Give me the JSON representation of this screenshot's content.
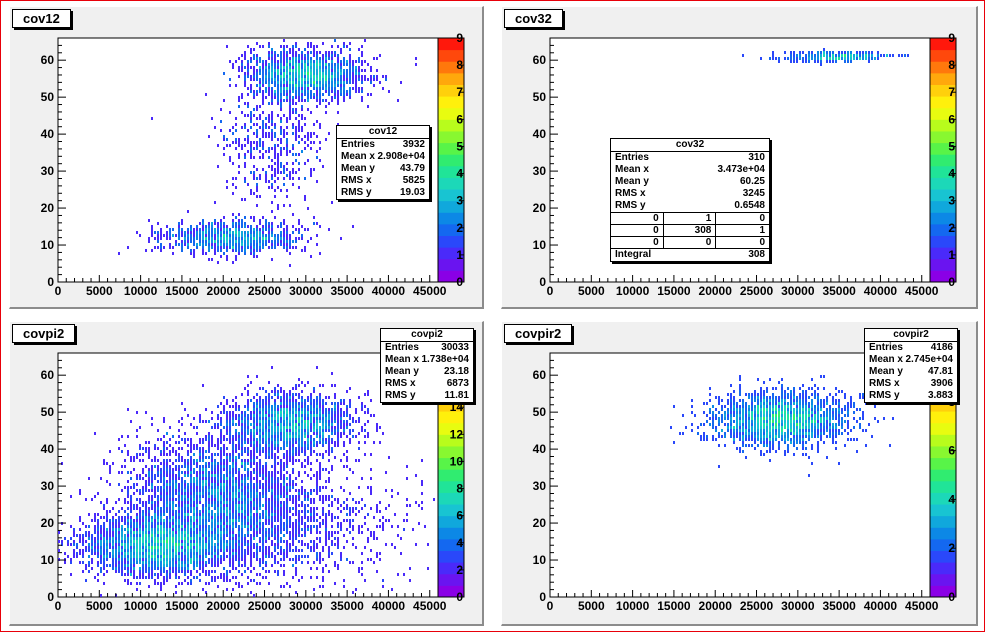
{
  "canvas": {
    "border_color": "#e8000a",
    "pad_background": "#f0f0f0"
  },
  "palette": [
    "#8a00e6",
    "#6a14f0",
    "#4a2afa",
    "#2a48fa",
    "#1468f0",
    "#0c88e6",
    "#10a8dc",
    "#18c4d2",
    "#1cd8b8",
    "#20e498",
    "#30ec70",
    "#58f448",
    "#88f830",
    "#b8fc1c",
    "#e8fc10",
    "#fff00c",
    "#ffd00c",
    "#ffa80c",
    "#ff780c",
    "#ff480c",
    "#ff180c"
  ],
  "panels": [
    {
      "id": "cov12",
      "title": "cov12",
      "stats": {
        "title": "cov12",
        "rows": [
          {
            "label": "Entries",
            "value": "3932"
          },
          {
            "label": "Mean x",
            "value": "2.908e+04"
          },
          {
            "label": "Mean y",
            "value": "43.79"
          },
          {
            "label": "RMS x",
            "value": "5825"
          },
          {
            "label": "RMS y",
            "value": "19.03"
          }
        ]
      },
      "chart_data": {
        "type": "heatmap",
        "xlim": [
          0,
          46000
        ],
        "ylim": [
          0,
          66
        ],
        "xticks": [
          "0",
          "5000",
          "10000",
          "15000",
          "20000",
          "25000",
          "30000",
          "35000",
          "40000",
          "45000"
        ],
        "yticks": [
          "0",
          "10",
          "20",
          "30",
          "40",
          "50",
          "60"
        ],
        "zlim": [
          0,
          9
        ],
        "zticks": [
          "0",
          "1",
          "2",
          "3",
          "4",
          "5",
          "6",
          "7",
          "8",
          "9"
        ],
        "blobs": [
          {
            "cx": 21000,
            "cy": 12,
            "sx": 4200,
            "sy": 2.2,
            "n": 1100,
            "peak": 0.55
          },
          {
            "cx": 30000,
            "cy": 56,
            "sx": 3500,
            "sy": 3.2,
            "n": 1900,
            "peak": 0.75
          },
          {
            "cx": 26000,
            "cy": 38,
            "sx": 3000,
            "sy": 8,
            "n": 500,
            "peak": 0.2
          }
        ]
      }
    },
    {
      "id": "cov32",
      "title": "cov32",
      "stats": {
        "title": "cov32",
        "rows": [
          {
            "label": "Entries",
            "value": "310"
          },
          {
            "label": "Mean x",
            "value": "3.473e+04"
          },
          {
            "label": "Mean y",
            "value": "60.25"
          },
          {
            "label": "RMS x",
            "value": "3245"
          },
          {
            "label": "RMS y",
            "value": "0.6548"
          }
        ],
        "grid": [
          "0",
          "1",
          "0",
          "0",
          "308",
          "1",
          "0",
          "0",
          "0"
        ],
        "integral": {
          "label": "Integral",
          "value": "308"
        }
      },
      "chart_data": {
        "type": "heatmap",
        "xlim": [
          0,
          46000
        ],
        "ylim": [
          0,
          66
        ],
        "xticks": [
          "0",
          "5000",
          "10000",
          "15000",
          "20000",
          "25000",
          "30000",
          "35000",
          "40000",
          "45000"
        ],
        "yticks": [
          "0",
          "10",
          "20",
          "30",
          "40",
          "50",
          "60"
        ],
        "zlim": [
          0,
          9
        ],
        "zticks": [
          "0",
          "1",
          "2",
          "3",
          "4",
          "5",
          "6",
          "7",
          "8",
          "9"
        ],
        "blobs": [
          {
            "cx": 34700,
            "cy": 61,
            "sx": 3200,
            "sy": 0.6,
            "n": 310,
            "peak": 0.45
          }
        ]
      }
    },
    {
      "id": "covpi2",
      "title": "covpi2",
      "stats": {
        "title": "covpi2",
        "rows": [
          {
            "label": "Entries",
            "value": "30033"
          },
          {
            "label": "Mean x",
            "value": "1.738e+04"
          },
          {
            "label": "Mean y",
            "value": "23.18"
          },
          {
            "label": "RMS x",
            "value": "6873"
          },
          {
            "label": "RMS y",
            "value": "11.81"
          }
        ]
      },
      "chart_data": {
        "type": "heatmap",
        "xlim": [
          0,
          46000
        ],
        "ylim": [
          0,
          66
        ],
        "xticks": [
          "0",
          "5000",
          "10000",
          "15000",
          "20000",
          "25000",
          "30000",
          "35000",
          "40000",
          "45000"
        ],
        "yticks": [
          "0",
          "10",
          "20",
          "30",
          "40",
          "50",
          "60"
        ],
        "zlim": [
          0,
          18
        ],
        "zticks": [
          "0",
          "2",
          "4",
          "6",
          "8",
          "10",
          "12",
          "14",
          "16"
        ],
        "blobs": [
          {
            "cx": 12000,
            "cy": 14,
            "sx": 4500,
            "sy": 4,
            "n": 3000,
            "peak": 0.6
          },
          {
            "cx": 19000,
            "cy": 28,
            "sx": 5000,
            "sy": 8,
            "n": 2600,
            "peak": 0.3
          },
          {
            "cx": 28000,
            "cy": 47,
            "sx": 3800,
            "sy": 4,
            "n": 2200,
            "peak": 0.45
          },
          {
            "cx": 24000,
            "cy": 20,
            "sx": 8000,
            "sy": 8,
            "n": 1800,
            "peak": 0.15
          }
        ]
      }
    },
    {
      "id": "covpir2",
      "title": "covpir2",
      "stats": {
        "title": "covpir2",
        "rows": [
          {
            "label": "Entries",
            "value": "4186"
          },
          {
            "label": "Mean x",
            "value": "2.745e+04"
          },
          {
            "label": "Mean y",
            "value": "47.81"
          },
          {
            "label": "RMS x",
            "value": "3906"
          },
          {
            "label": "RMS y",
            "value": "3.883"
          }
        ]
      },
      "chart_data": {
        "type": "heatmap",
        "xlim": [
          0,
          46000
        ],
        "ylim": [
          0,
          66
        ],
        "xticks": [
          "0",
          "5000",
          "10000",
          "15000",
          "20000",
          "25000",
          "30000",
          "35000",
          "40000",
          "45000"
        ],
        "yticks": [
          "0",
          "10",
          "20",
          "30",
          "40",
          "50",
          "60"
        ],
        "zlim": [
          0,
          10
        ],
        "zticks": [
          "0",
          "2",
          "4",
          "6",
          "8"
        ],
        "blobs": [
          {
            "cx": 28000,
            "cy": 48,
            "sx": 4000,
            "sy": 3.5,
            "n": 2400,
            "peak": 0.7
          }
        ]
      }
    }
  ]
}
